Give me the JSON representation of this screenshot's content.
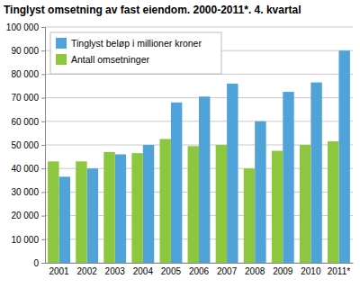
{
  "chart_data": {
    "type": "bar",
    "title": "Tinglyst omsetning av fast eiendom. 2000-2011*. 4. kvartal",
    "categories": [
      "2001",
      "2002",
      "2003",
      "2004",
      "2005",
      "2006",
      "2007",
      "2008",
      "2009",
      "2010",
      "2011*"
    ],
    "series": [
      {
        "name": "Tinglyst beløp i millioner kroner",
        "color": "#4fa3d9",
        "values": [
          36500,
          40000,
          46000,
          50000,
          68000,
          70500,
          76000,
          60000,
          72500,
          76500,
          90000
        ]
      },
      {
        "name": "Antall omsetninger",
        "color": "#8dc63f",
        "values": [
          43000,
          43000,
          47000,
          46500,
          52500,
          49500,
          50000,
          40000,
          47500,
          50000,
          51500
        ]
      }
    ],
    "ylim": [
      0,
      100000
    ],
    "yticks": [
      0,
      {
        "value": 10000,
        "label": "10 000"
      },
      {
        "value": 20000,
        "label": "20 000"
      },
      {
        "value": 30000,
        "label": "30 000"
      },
      {
        "value": 40000,
        "label": "40 000"
      },
      {
        "value": 50000,
        "label": "50 000"
      },
      {
        "value": 60000,
        "label": "60 000"
      },
      {
        "value": 70000,
        "label": "70 000"
      },
      {
        "value": 80000,
        "label": "80 000"
      },
      {
        "value": 90000,
        "label": "90 000"
      },
      {
        "value": 100000,
        "label": "100 000"
      }
    ],
    "grid": true,
    "legend": "top-left"
  }
}
